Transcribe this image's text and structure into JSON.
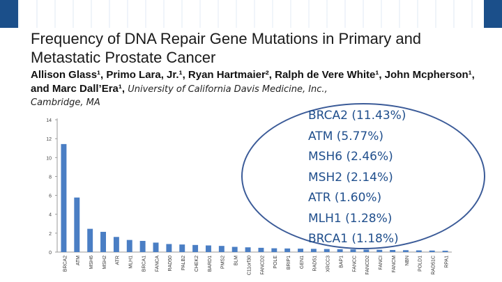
{
  "slide": {
    "title": "Frequency of DNA Repair Gene Mutations in Primary and Metastatic Prostate Cancer",
    "authors": "Allison Glass¹, Primo Lara, Jr.¹, Ryan Hartmaier², Ralph de Vere White¹, John Mcpherson¹, and Marc Dall’Era¹,",
    "affiliation_line1": "University of California Davis Medicine, Inc.,",
    "affiliation_line2": "Cambridge, MA"
  },
  "callout": {
    "items": [
      "BRCA2 (11.43%)",
      "ATM (5.77%)",
      "MSH6 (2.46%)",
      "MSH2 (2.14%)",
      "ATR (1.60%)",
      "MLH1 (1.28%)",
      "BRCA1 (1.18%)"
    ]
  },
  "colors": {
    "bar": "#4a7ec4",
    "callout_border": "#3b5b98",
    "callout_text": "#1f4e8c"
  },
  "chart_data": {
    "type": "bar",
    "categories": [
      "BRCA2",
      "ATM",
      "MSH6",
      "MSH2",
      "ATR",
      "MLH1",
      "BRCA1",
      "FANCA",
      "RAD50",
      "PALB2",
      "CHEK2",
      "BARD1",
      "PMS2",
      "BLM",
      "C11orf30",
      "FANCD2",
      "POLE",
      "BRIP1",
      "GEN1",
      "RAD51",
      "XRCC3",
      "BAP1",
      "FANCC",
      "FANCD2",
      "FANCI",
      "FANCM",
      "NBN",
      "POLD1",
      "RAD51C",
      "RPA1"
    ],
    "values": [
      11.43,
      5.77,
      2.46,
      2.14,
      1.6,
      1.28,
      1.18,
      1.0,
      0.85,
      0.8,
      0.75,
      0.7,
      0.65,
      0.55,
      0.5,
      0.45,
      0.4,
      0.38,
      0.36,
      0.34,
      0.32,
      0.3,
      0.28,
      0.26,
      0.24,
      0.22,
      0.2,
      0.18,
      0.16,
      0.14
    ],
    "yticks": [
      0,
      2,
      4,
      6,
      8,
      10,
      12,
      14
    ],
    "ylim": [
      0,
      14
    ],
    "grid": false
  }
}
